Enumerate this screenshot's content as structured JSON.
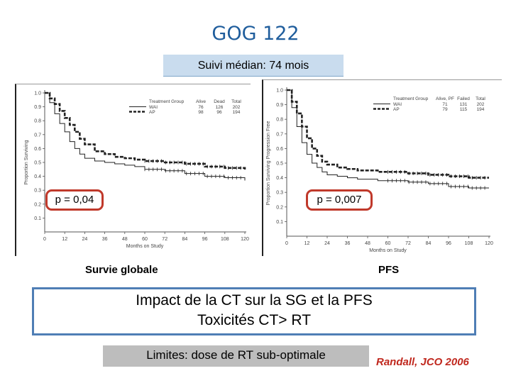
{
  "header": {
    "title": "GOG 122",
    "subtitle": "Suivi médian: 74 mois"
  },
  "chart_data": [
    {
      "type": "line",
      "panel": "left",
      "ylabel": "Proportion Surviving",
      "xlabel": "Months on Study",
      "xlim": [
        0,
        120
      ],
      "ylim": [
        0,
        1.0
      ],
      "xticks": [
        0,
        12,
        24,
        36,
        48,
        60,
        72,
        84,
        96,
        108,
        120
      ],
      "yticks": [
        0.1,
        0.2,
        0.3,
        0.4,
        0.5,
        0.6,
        0.7,
        0.8,
        0.9,
        1.0
      ],
      "legend": {
        "headers": [
          "Treatment Group",
          "Alive",
          "Dead",
          "Total"
        ],
        "rows": [
          {
            "name": "WAI",
            "values": [
              "76",
              "126",
              "202"
            ],
            "style": "solid"
          },
          {
            "name": "AP",
            "values": [
              "98",
              "96",
              "194"
            ],
            "style": "dashed"
          }
        ]
      },
      "series": [
        {
          "name": "WAI",
          "style": "solid",
          "x": [
            0,
            3,
            6,
            9,
            12,
            15,
            18,
            21,
            24,
            30,
            36,
            42,
            48,
            54,
            60,
            72,
            84,
            96,
            108,
            120
          ],
          "y": [
            1.0,
            0.93,
            0.85,
            0.78,
            0.72,
            0.65,
            0.6,
            0.56,
            0.53,
            0.51,
            0.5,
            0.49,
            0.48,
            0.47,
            0.45,
            0.44,
            0.42,
            0.4,
            0.39,
            0.37
          ]
        },
        {
          "name": "AP",
          "style": "dashed",
          "x": [
            0,
            3,
            6,
            9,
            12,
            15,
            18,
            21,
            24,
            30,
            36,
            42,
            48,
            54,
            60,
            72,
            84,
            96,
            108,
            120
          ],
          "y": [
            1.0,
            0.96,
            0.92,
            0.87,
            0.82,
            0.77,
            0.72,
            0.67,
            0.63,
            0.58,
            0.56,
            0.54,
            0.53,
            0.52,
            0.51,
            0.5,
            0.49,
            0.47,
            0.46,
            0.44
          ]
        }
      ],
      "annotation": "p = 0,04",
      "caption": "Survie globale"
    },
    {
      "type": "line",
      "panel": "right",
      "ylabel": "Proportion Surviving Progression Free",
      "xlabel": "Months on Study",
      "xlim": [
        0,
        120
      ],
      "ylim": [
        0,
        1.0
      ],
      "xticks": [
        0,
        12,
        24,
        36,
        48,
        60,
        72,
        84,
        96,
        108,
        120
      ],
      "yticks": [
        0.1,
        0.2,
        0.3,
        0.4,
        0.5,
        0.6,
        0.7,
        0.8,
        0.9,
        1.0
      ],
      "legend": {
        "headers": [
          "Treatment Group",
          "Alive, PF",
          "Failed",
          "Total"
        ],
        "rows": [
          {
            "name": "WAI",
            "values": [
              "71",
              "131",
              "202"
            ],
            "style": "solid"
          },
          {
            "name": "AP",
            "values": [
              "79",
              "115",
              "194"
            ],
            "style": "dashed"
          }
        ]
      },
      "series": [
        {
          "name": "WAI",
          "style": "solid",
          "x": [
            0,
            3,
            6,
            9,
            12,
            15,
            18,
            21,
            24,
            30,
            36,
            42,
            48,
            54,
            60,
            72,
            84,
            96,
            108,
            120
          ],
          "y": [
            1.0,
            0.88,
            0.75,
            0.64,
            0.56,
            0.5,
            0.47,
            0.44,
            0.42,
            0.41,
            0.4,
            0.39,
            0.39,
            0.38,
            0.38,
            0.37,
            0.36,
            0.34,
            0.33,
            0.33
          ]
        },
        {
          "name": "AP",
          "style": "dashed",
          "x": [
            0,
            3,
            6,
            9,
            12,
            15,
            18,
            21,
            24,
            30,
            36,
            42,
            48,
            54,
            60,
            72,
            84,
            96,
            108,
            120
          ],
          "y": [
            1.0,
            0.92,
            0.84,
            0.75,
            0.67,
            0.6,
            0.55,
            0.51,
            0.49,
            0.47,
            0.46,
            0.45,
            0.45,
            0.44,
            0.44,
            0.43,
            0.42,
            0.41,
            0.4,
            0.4
          ]
        }
      ],
      "annotation": "p = 0,007",
      "caption": "PFS"
    }
  ],
  "impact": {
    "line1": "Impact de la CT sur la SG et la PFS",
    "line2": "Toxicités CT> RT"
  },
  "limites": "Limites: dose de RT sub-optimale",
  "reference": "Randall, JCO 2006",
  "colors": {
    "title": "#1f5d9c",
    "highlight_border": "#c0392b",
    "reference": "#c0281e",
    "box_border": "#4f7eb5"
  }
}
